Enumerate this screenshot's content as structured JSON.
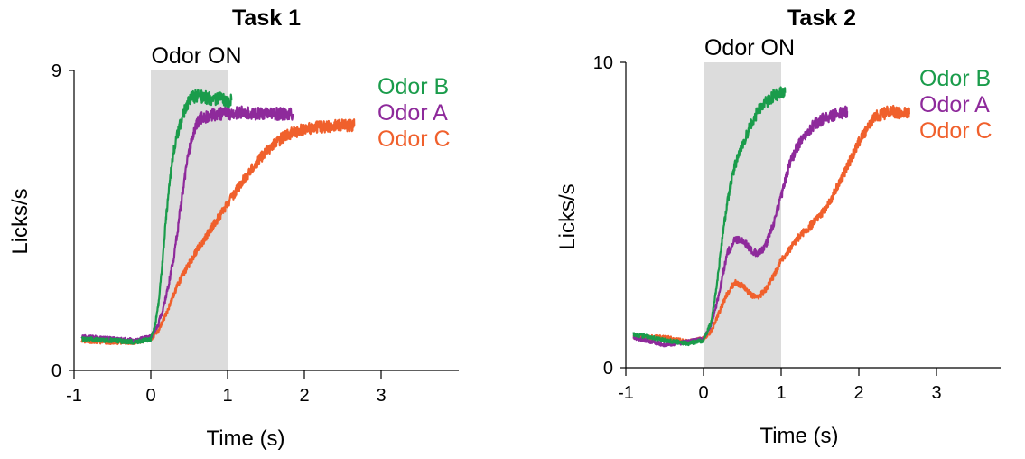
{
  "colors": {
    "odor_b": "#1a9c4b",
    "odor_a": "#8e2a9b",
    "odor_c": "#f0602c",
    "stim_shade": "#dcdcdc"
  },
  "chart_data": [
    {
      "type": "line",
      "title": "Task 1",
      "xlabel": "Time (s)",
      "ylabel": "Licks/s",
      "xlim": [
        -1.0,
        4.0
      ],
      "ylim": [
        0,
        9
      ],
      "xticks": [
        -1,
        0,
        1,
        2,
        3
      ],
      "yticks": [
        0,
        9
      ],
      "annotation": {
        "text": "Odor ON",
        "x_start": 0,
        "x_end": 1
      },
      "legend_position": "top-right",
      "series": [
        {
          "name": "Odor B",
          "color_key": "odor_b",
          "x": [
            -0.9,
            -0.5,
            -0.2,
            0.0,
            0.05,
            0.1,
            0.15,
            0.2,
            0.25,
            0.3,
            0.35,
            0.4,
            0.45,
            0.5,
            0.55,
            0.6,
            0.7,
            0.8,
            0.9,
            1.0,
            1.05
          ],
          "y": [
            0.95,
            0.9,
            0.85,
            0.95,
            1.3,
            2.0,
            3.2,
            4.6,
            5.8,
            6.6,
            7.1,
            7.5,
            7.9,
            8.1,
            8.2,
            8.25,
            8.2,
            8.15,
            8.15,
            8.1,
            8.1
          ]
        },
        {
          "name": "Odor A",
          "color_key": "odor_a",
          "x": [
            -0.9,
            -0.5,
            -0.2,
            0.0,
            0.1,
            0.2,
            0.3,
            0.35,
            0.4,
            0.45,
            0.5,
            0.55,
            0.6,
            0.65,
            0.7,
            0.8,
            0.9,
            1.0,
            1.2,
            1.4,
            1.6,
            1.85
          ],
          "y": [
            1.0,
            0.95,
            0.9,
            1.0,
            1.4,
            2.2,
            3.4,
            4.2,
            5.1,
            5.9,
            6.6,
            7.1,
            7.4,
            7.55,
            7.6,
            7.65,
            7.7,
            7.7,
            7.75,
            7.7,
            7.7,
            7.7
          ]
        },
        {
          "name": "Odor C",
          "color_key": "odor_c",
          "x": [
            -0.9,
            -0.5,
            -0.2,
            0.0,
            0.1,
            0.2,
            0.3,
            0.4,
            0.5,
            0.6,
            0.7,
            0.8,
            0.9,
            1.0,
            1.2,
            1.4,
            1.6,
            1.8,
            2.0,
            2.2,
            2.4,
            2.65
          ],
          "y": [
            0.9,
            0.85,
            0.85,
            0.95,
            1.2,
            1.7,
            2.3,
            2.8,
            3.2,
            3.6,
            3.95,
            4.3,
            4.65,
            5.0,
            5.7,
            6.3,
            6.8,
            7.1,
            7.25,
            7.3,
            7.35,
            7.35
          ]
        }
      ]
    },
    {
      "type": "line",
      "title": "Task 2",
      "xlabel": "Time (s)",
      "ylabel": "Licks/s",
      "xlim": [
        -1.0,
        4.0
      ],
      "ylim": [
        0,
        10
      ],
      "xticks": [
        -1,
        0,
        1,
        2,
        3
      ],
      "yticks": [
        0,
        10
      ],
      "annotation": {
        "text": "Odor ON",
        "x_start": 0,
        "x_end": 1
      },
      "legend_position": "top-right",
      "series": [
        {
          "name": "Odor B",
          "color_key": "odor_b",
          "x": [
            -0.9,
            -0.5,
            -0.2,
            0.0,
            0.1,
            0.15,
            0.2,
            0.25,
            0.3,
            0.35,
            0.4,
            0.5,
            0.6,
            0.7,
            0.8,
            0.9,
            1.0,
            1.05
          ],
          "y": [
            1.1,
            0.9,
            0.8,
            0.9,
            1.5,
            2.3,
            3.3,
            4.4,
            5.3,
            6.0,
            6.6,
            7.3,
            7.9,
            8.4,
            8.7,
            8.9,
            9.0,
            9.0
          ]
        },
        {
          "name": "Odor A",
          "color_key": "odor_a",
          "x": [
            -0.9,
            -0.5,
            -0.2,
            0.0,
            0.1,
            0.2,
            0.3,
            0.4,
            0.5,
            0.6,
            0.7,
            0.8,
            0.9,
            1.0,
            1.1,
            1.2,
            1.3,
            1.4,
            1.5,
            1.6,
            1.7,
            1.85
          ],
          "y": [
            1.0,
            0.75,
            0.85,
            0.95,
            1.4,
            2.4,
            3.7,
            4.2,
            4.2,
            3.9,
            3.7,
            4.0,
            4.7,
            5.6,
            6.6,
            7.2,
            7.6,
            7.9,
            8.1,
            8.2,
            8.3,
            8.4
          ]
        },
        {
          "name": "Odor C",
          "color_key": "odor_c",
          "x": [
            -0.9,
            -0.5,
            -0.2,
            0.0,
            0.1,
            0.2,
            0.3,
            0.4,
            0.5,
            0.6,
            0.7,
            0.8,
            0.9,
            1.0,
            1.2,
            1.4,
            1.6,
            1.8,
            2.0,
            2.2,
            2.4,
            2.65
          ],
          "y": [
            1.0,
            1.0,
            0.85,
            0.95,
            1.2,
            1.8,
            2.4,
            2.8,
            2.7,
            2.4,
            2.3,
            2.55,
            3.0,
            3.5,
            4.2,
            4.7,
            5.3,
            6.3,
            7.4,
            8.2,
            8.4,
            8.3
          ]
        }
      ]
    }
  ]
}
